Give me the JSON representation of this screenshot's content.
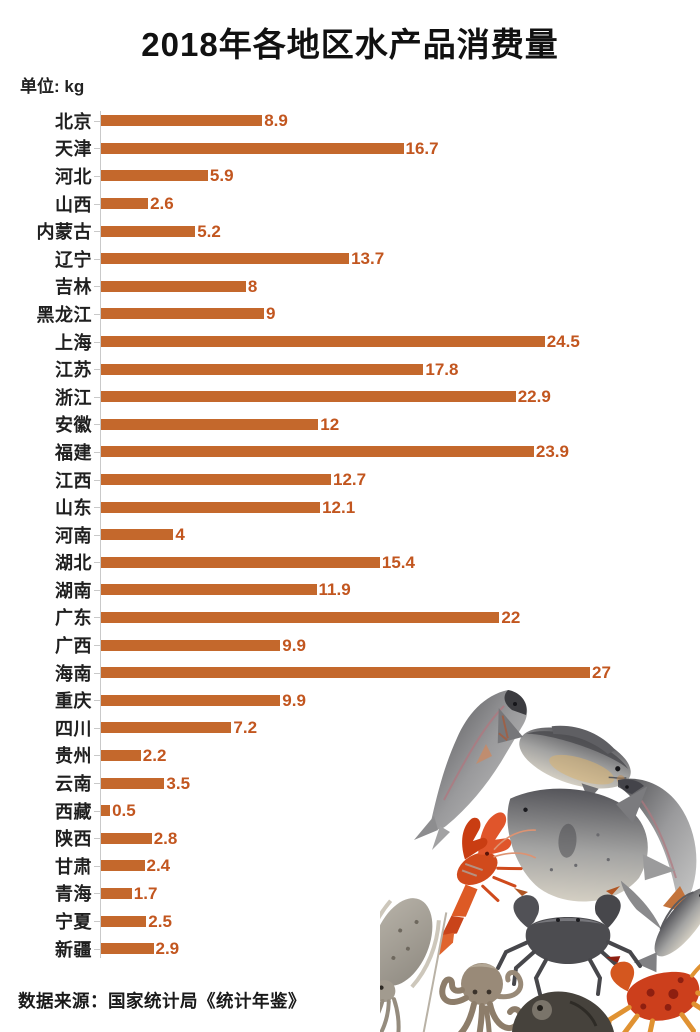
{
  "chart_data": {
    "type": "bar",
    "orientation": "horizontal",
    "title": "2018年各地区水产品消费量",
    "unit_label": "单位: kg",
    "ylabel": "",
    "xlabel": "",
    "xlim": [
      0,
      27
    ],
    "grid": false,
    "legend": false,
    "categories": [
      "北京",
      "天津",
      "河北",
      "山西",
      "内蒙古",
      "辽宁",
      "吉林",
      "黑龙江",
      "上海",
      "江苏",
      "浙江",
      "安徽",
      "福建",
      "江西",
      "山东",
      "河南",
      "湖北",
      "湖南",
      "广东",
      "广西",
      "海南",
      "重庆",
      "四川",
      "贵州",
      "云南",
      "西藏",
      "陕西",
      "甘肃",
      "青海",
      "宁夏",
      "新疆"
    ],
    "values": [
      8.9,
      16.7,
      5.9,
      2.6,
      5.2,
      13.7,
      8,
      9,
      24.5,
      17.8,
      22.9,
      12,
      23.9,
      12.7,
      12.1,
      4,
      15.4,
      11.9,
      22,
      9.9,
      27,
      9.9,
      7.2,
      2.2,
      3.5,
      0.5,
      2.8,
      2.4,
      1.7,
      2.5,
      2.9
    ],
    "value_labels": [
      "8.9",
      "16.7",
      "5.9",
      "2.6",
      "5.2",
      "13.7",
      "8",
      "9",
      "24.5",
      "17.8",
      "22.9",
      "12",
      "23.9",
      "12.7",
      "12.1",
      "4",
      "15.4",
      "11.9",
      "22",
      "9.9",
      "27",
      "9.9",
      "7.2",
      "2.2",
      "3.5",
      "0.5",
      "2.8",
      "2.4",
      "1.7",
      "2.5",
      "2.9"
    ],
    "source": "数据来源：国家统计局《统计年鉴》",
    "bar_color": "#C4682C",
    "value_label_color": "#C2561F",
    "axis_color": "#C9C9C9",
    "label_color": "#1F1F1F"
  },
  "illustration": {
    "description": "watercolor seafood collage in bottom-right corner",
    "items": [
      "curved-fish",
      "carp",
      "pomfret",
      "right-curved-fish",
      "small-side-fish",
      "crayfish",
      "gray-crab",
      "cuttlefish",
      "octopus",
      "red-crab",
      "dark-fish-head"
    ]
  }
}
